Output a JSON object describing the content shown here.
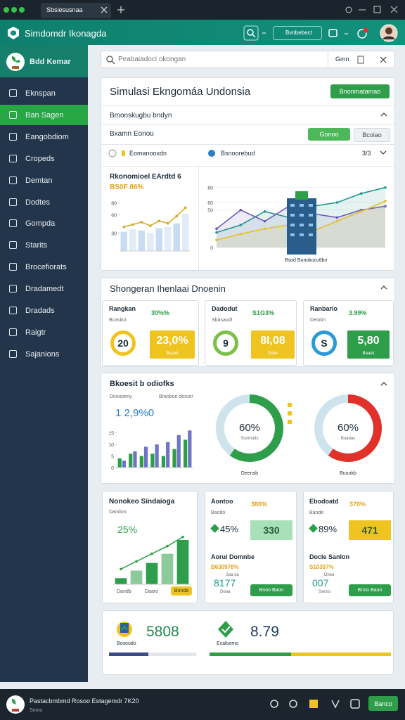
{
  "window": {
    "tab": "Sbsiesusnaa"
  },
  "header": {
    "title": "Simdomdr Ikonagda",
    "search": "Bvobebect"
  },
  "sidebar": {
    "brand": "Bdd Kemar",
    "items": [
      "Eknspan",
      "Ban Sagen",
      "Eangobdiom",
      "Cropeds",
      "Demtan",
      "Dodtes",
      "Gompda",
      "Starits",
      "Brocefiorats",
      "Dradamedt",
      "Dradads",
      "Raigtr",
      "Sajanions"
    ]
  },
  "search": {
    "placeholder": "Peabaiadoci okongan",
    "button": "Gmn"
  },
  "simulation": {
    "title": "Simulasi Ekngomáa Undonsia",
    "button": "Bnonmatamao",
    "subtitle": "Bmonskugbu bndyn",
    "filter": "Bxamn Eonou",
    "apply": "Gonoo",
    "reset": "Bcoiao",
    "tab_left": "Eomanooxdn",
    "tab_right": "Bsnoorebud",
    "tab_count": "3/3",
    "chart_left": {
      "type": "bar",
      "title": "Rkonomioel EArdtd 6",
      "subtitle": "BS0F 86%",
      "values": [
        32,
        36,
        34,
        30,
        38,
        40,
        46,
        62
      ],
      "color": "#c9dcf3",
      "line": [
        40,
        44,
        48,
        42,
        50,
        46,
        58,
        72
      ],
      "line_color": "#d4a820",
      "ylim": [
        0,
        90
      ],
      "yticks": [
        30,
        60,
        80
      ]
    },
    "chart_right": {
      "type": "line",
      "legend": "Bsod Bunokocutlbn",
      "ylim": [
        0,
        90
      ],
      "yticks": [
        0,
        50,
        60,
        80
      ],
      "series": [
        {
          "color": "#1f9a8a",
          "values": [
            20,
            30,
            48,
            40,
            55,
            60,
            72,
            80
          ]
        },
        {
          "color": "#6b5bb5",
          "values": [
            25,
            50,
            35,
            55,
            45,
            40,
            50,
            55
          ]
        },
        {
          "color": "#e6c030",
          "values": [
            10,
            18,
            25,
            30,
            22,
            35,
            48,
            62
          ]
        }
      ]
    }
  },
  "indicators": {
    "title": "Shongeran Ihenlaai Dnoenin",
    "cards": [
      {
        "name": "Rangkan",
        "pct": "30%%",
        "note": "Bcaskut",
        "gauge": "20",
        "value": "23,0%",
        "value_note": "Bsaob"
      },
      {
        "name": "Dadodut",
        "pct": "S1G3%",
        "note": "Sbasaudt",
        "gauge": "9",
        "value": "8I,08",
        "value_note": "Doke"
      },
      {
        "name": "Ranbario",
        "pct": "3.99%",
        "note": "Deiobn",
        "gauge": "S",
        "value": "5,80",
        "value_note": "Baask"
      }
    ]
  },
  "growth": {
    "title": "Bkoesit b odiofks",
    "subtitle": "Dinooomy",
    "subtitle2": "Branbon doruor",
    "headline": "1 2,9%0",
    "chart": {
      "type": "bar",
      "ylim": [
        0,
        20
      ],
      "yticks": [
        0,
        5,
        10,
        15
      ],
      "series": [
        {
          "color": "#2e9e4a",
          "values": [
            4,
            6,
            5,
            6,
            5,
            8,
            12
          ]
        },
        {
          "color": "#6f74c4",
          "values": [
            3,
            7,
            9,
            10,
            11,
            14,
            16
          ]
        }
      ]
    },
    "donuts": [
      {
        "type": "pie",
        "values": [
          60
        ],
        "value_labels": [
          "60%"
        ],
        "note": "Ssomods",
        "caption": "Deensb",
        "color": "#2e9e4a"
      },
      {
        "type": "pie",
        "values": [
          60
        ],
        "value_labels": [
          "60%"
        ],
        "note": "Buadas",
        "caption": "Buunkb",
        "color": "#e0312a"
      }
    ]
  },
  "row": {
    "left": {
      "title": "Nonokeo Sindaioga",
      "note": "Dandon",
      "pct": "25%",
      "tag": "Bonda",
      "x_labels": [
        "Dandb",
        "Daaro"
      ],
      "chart": {
        "type": "bar",
        "ylim": [
          0,
          70
        ],
        "values": [
          8,
          18,
          28,
          40,
          58
        ],
        "color": "#2e9e4a",
        "line": [
          20,
          30,
          40,
          50,
          62
        ],
        "line_color": "#2e9e4a"
      }
    },
    "cards": [
      {
        "title": "Aontoo",
        "pct": "380%",
        "note": "Baodo",
        "delta": "45%",
        "value": "330",
        "sub_title": "Aorui Domnbe",
        "sub_pct": "B630978%",
        "sub_note": "Saa ka",
        "sub_value": "8177",
        "sub_note2": "Doaa",
        "button": "Bnoo Baon"
      },
      {
        "title": "Ebodoatd",
        "pct": "370%",
        "note": "Bande",
        "delta": "89%",
        "value": "471",
        "sub_title": "Docle Sanlon",
        "sub_pct": "S10397%",
        "sub_note": "Dnoo",
        "sub_value": "007",
        "sub_note2": "Sanso",
        "button": "Bnoo Baon"
      }
    ]
  },
  "summary": {
    "items": [
      {
        "label": "Bosoudo",
        "value": "5808",
        "progress": [
          45
        ],
        "colors": [
          "#3a4c8a"
        ]
      },
      {
        "label": "Ecaloomo",
        "value": "8.79",
        "progress": [
          45,
          55
        ],
        "colors": [
          "#2e9e4a",
          "#f0c420"
        ]
      }
    ]
  },
  "taskbar": {
    "title": "Pastacbmbmd Rosoo Estagemdr 7K20",
    "subtitle": "Somo",
    "button": "Banco"
  }
}
